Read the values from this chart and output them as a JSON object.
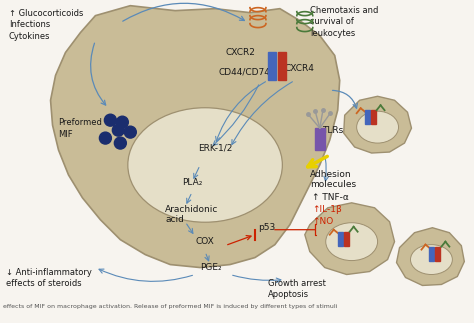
{
  "bg_color": "#f7f4ef",
  "cell_color": "#c9bc97",
  "cell_edge_color": "#9e9070",
  "nucleus_color": "#e5dfc8",
  "labels": {
    "glucocorticoids": "↑ Glucocorticoids\nInfections\nCytokines",
    "preformed_mif": "Preformed\nMIF",
    "cxcr2": "CXCR2",
    "cd44_cd74": "CD44/CD74",
    "cxcr4": "CXCR4",
    "erk": "ERK-1/2",
    "pla2": "PLA₂",
    "arachidonic": "Arachidonic\nacid",
    "cox": "COX",
    "pge2": "PGE₂",
    "p53": "p53",
    "tlrs": "TLRs",
    "adhesion": "Adhesion\nmolecules",
    "tnf": "↑ TNF-α",
    "il1b": "↑IL-1β",
    "no": "↑NO",
    "chemotaxis": "Chemotaxis and\nsurvival of\nleukocytes",
    "anti_inflam": "↓ Anti-inflammatory\neffects of steroids",
    "growth_arrest": "Growth arrest\nApoptosis"
  },
  "arrow_color": "#5a8ab8",
  "inhibit_color": "#cc2200",
  "text_color": "#1a1a1a",
  "mif_dot_color": "#1a2d6e",
  "yellow_color": "#e8d000",
  "receptor_orange": "#cc6622",
  "receptor_green": "#4a7a3a",
  "receptor_blue": "#4466bb",
  "receptor_purple": "#7755aa",
  "receptor_red": "#bb3322",
  "receptor_gray": "#999999"
}
